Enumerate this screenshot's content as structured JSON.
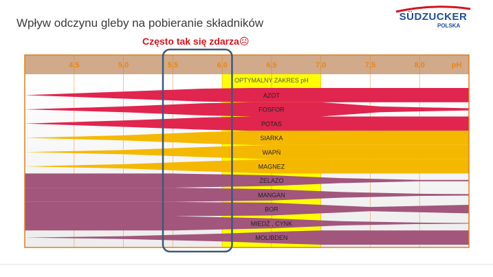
{
  "slide": {
    "title": "Wpływ odczynu gleby na pobieranie składników",
    "subtitle": "Często tak się zdarza☹",
    "logo": {
      "main": "SÜDZUCKER",
      "sub": "POLSKA"
    }
  },
  "colors": {
    "header_bg": "#d0aa8a",
    "tick_label": "#e8851a",
    "frame": "#e07d1c",
    "optimal_band": "#ffff00",
    "highlight_box": "#3f5877",
    "macro": "#e0254e",
    "secondary": "#f5b800",
    "micro": "#a2567c"
  },
  "chart_data": {
    "type": "area",
    "title": "Wpływ odczynu gleby na pobieranie składników",
    "x_axis": {
      "label": "pH",
      "ticks": [
        4.5,
        5.0,
        5.5,
        6.0,
        6.5,
        7.0,
        7.5,
        8.0
      ],
      "tick_labels": [
        "4,5",
        "5,0",
        "5,5",
        "6,0",
        "6,5",
        "7,0",
        "7,5",
        "8,0"
      ],
      "range": [
        4.0,
        8.5
      ]
    },
    "optimal_range": {
      "label": "OPTYMALNY ZAKRES pH",
      "from": 6.0,
      "to": 7.0
    },
    "highlight_range": {
      "from": 5.4,
      "to": 6.1
    },
    "series": [
      {
        "name": "AZOT",
        "group": "macro",
        "ph": [
          4.0,
          5.0,
          5.8,
          6.3,
          7.0,
          8.0,
          8.5
        ],
        "availability": [
          0.0,
          0.5,
          0.9,
          1.0,
          1.0,
          1.0,
          1.0
        ]
      },
      {
        "name": "FOSFOR",
        "group": "macro",
        "ph": [
          4.0,
          5.0,
          5.8,
          6.3,
          7.0,
          7.6,
          8.5
        ],
        "availability": [
          0.0,
          0.4,
          0.85,
          1.0,
          1.0,
          0.4,
          0.15
        ]
      },
      {
        "name": "POTAS",
        "group": "macro",
        "ph": [
          4.0,
          5.0,
          5.8,
          6.3,
          7.0,
          8.0,
          8.5
        ],
        "availability": [
          0.0,
          0.45,
          0.85,
          1.0,
          1.0,
          1.0,
          1.0
        ]
      },
      {
        "name": "SIARKA",
        "group": "secondary",
        "ph": [
          4.0,
          5.0,
          5.8,
          6.3,
          7.0,
          8.0,
          8.5
        ],
        "availability": [
          0.0,
          0.35,
          0.8,
          1.0,
          1.0,
          1.0,
          1.0
        ]
      },
      {
        "name": "WAPŃ",
        "group": "secondary",
        "ph": [
          4.0,
          5.0,
          5.8,
          6.5,
          7.0,
          8.0,
          8.5
        ],
        "availability": [
          0.0,
          0.3,
          0.7,
          1.0,
          1.0,
          1.0,
          1.0
        ]
      },
      {
        "name": "MAGNEZ",
        "group": "secondary",
        "ph": [
          4.0,
          5.0,
          5.8,
          6.5,
          7.0,
          8.0,
          8.5
        ],
        "availability": [
          0.0,
          0.3,
          0.7,
          1.0,
          1.0,
          1.0,
          1.0
        ]
      },
      {
        "name": "ŻELAZO",
        "group": "micro",
        "ph": [
          4.0,
          5.5,
          6.5,
          7.2,
          8.0,
          8.5
        ],
        "availability": [
          1.0,
          1.0,
          0.75,
          0.35,
          0.1,
          0.1
        ]
      },
      {
        "name": "MANGAN",
        "group": "micro",
        "ph": [
          4.0,
          5.5,
          6.5,
          7.2,
          8.0,
          8.5
        ],
        "availability": [
          1.0,
          1.0,
          0.8,
          0.4,
          0.15,
          0.1
        ]
      },
      {
        "name": "BOR",
        "group": "micro",
        "ph": [
          4.0,
          5.5,
          6.5,
          7.0,
          7.5,
          8.5
        ],
        "availability": [
          1.0,
          1.0,
          0.9,
          0.6,
          0.3,
          0.6
        ]
      },
      {
        "name": "MIEDŹ , CYNK",
        "group": "micro",
        "ph": [
          4.0,
          5.5,
          6.5,
          7.2,
          8.0,
          8.5
        ],
        "availability": [
          1.0,
          1.0,
          0.7,
          0.3,
          0.1,
          0.05
        ]
      },
      {
        "name": "MOLIBDEN",
        "group": "micro",
        "ph": [
          4.0,
          5.0,
          6.0,
          6.5,
          7.0,
          8.0,
          8.5
        ],
        "availability": [
          0.0,
          0.2,
          0.55,
          0.8,
          1.0,
          1.0,
          1.0
        ]
      }
    ]
  }
}
